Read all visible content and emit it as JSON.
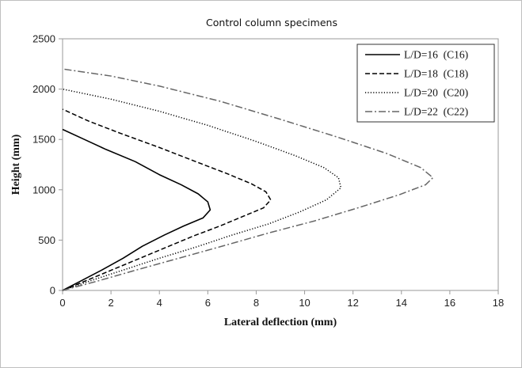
{
  "chart_data": {
    "type": "line",
    "title": "Control column specimens",
    "xlabel": "Lateral deflection (mm)",
    "ylabel": "Height (mm)",
    "xlim": [
      0,
      18
    ],
    "ylim": [
      0,
      2500
    ],
    "xticks": [
      "0",
      "2",
      "4",
      "6",
      "8",
      "10",
      "12",
      "14",
      "16",
      "18"
    ],
    "yticks": [
      "0",
      "500",
      "1000",
      "1500",
      "2000",
      "2500"
    ],
    "grid": false,
    "legend_position": "top-right",
    "series": [
      {
        "name": "L/D=16  (C16)",
        "color": "#000000",
        "dash": "solid",
        "points": [
          [
            0,
            0
          ],
          [
            0.8,
            100
          ],
          [
            1.6,
            200
          ],
          [
            2.5,
            320
          ],
          [
            3.3,
            440
          ],
          [
            4.2,
            550
          ],
          [
            5.0,
            640
          ],
          [
            5.8,
            720
          ],
          [
            6.1,
            800
          ],
          [
            6.0,
            880
          ],
          [
            5.6,
            960
          ],
          [
            4.9,
            1050
          ],
          [
            4.0,
            1150
          ],
          [
            3.0,
            1280
          ],
          [
            1.8,
            1400
          ],
          [
            0.9,
            1500
          ],
          [
            0,
            1600
          ]
        ]
      },
      {
        "name": "L/D=18  (C18)",
        "color": "#000000",
        "dash": "dashed",
        "points": [
          [
            0,
            0
          ],
          [
            1.0,
            100
          ],
          [
            2.1,
            210
          ],
          [
            3.2,
            320
          ],
          [
            4.3,
            430
          ],
          [
            5.4,
            540
          ],
          [
            6.5,
            640
          ],
          [
            7.5,
            740
          ],
          [
            8.3,
            820
          ],
          [
            8.6,
            900
          ],
          [
            8.4,
            980
          ],
          [
            7.8,
            1060
          ],
          [
            6.8,
            1160
          ],
          [
            5.5,
            1280
          ],
          [
            4.0,
            1420
          ],
          [
            2.4,
            1560
          ],
          [
            1.1,
            1680
          ],
          [
            0,
            1800
          ]
        ]
      },
      {
        "name": "L/D=20  (C20)",
        "color": "#000000",
        "dash": "dotted",
        "points": [
          [
            0,
            0
          ],
          [
            1.2,
            100
          ],
          [
            2.6,
            210
          ],
          [
            4.0,
            320
          ],
          [
            5.5,
            430
          ],
          [
            7.0,
            550
          ],
          [
            8.5,
            660
          ],
          [
            9.8,
            780
          ],
          [
            10.9,
            900
          ],
          [
            11.5,
            1020
          ],
          [
            11.4,
            1120
          ],
          [
            10.8,
            1220
          ],
          [
            9.6,
            1340
          ],
          [
            8.0,
            1480
          ],
          [
            6.0,
            1640
          ],
          [
            4.0,
            1780
          ],
          [
            2.0,
            1900
          ],
          [
            0,
            2000
          ]
        ]
      },
      {
        "name": "L/D=22  (C22)",
        "color": "#666666",
        "dash": "dashdot",
        "points": [
          [
            0,
            0
          ],
          [
            1.4,
            90
          ],
          [
            3.0,
            200
          ],
          [
            4.8,
            320
          ],
          [
            6.6,
            440
          ],
          [
            8.5,
            570
          ],
          [
            10.4,
            690
          ],
          [
            12.2,
            820
          ],
          [
            13.9,
            950
          ],
          [
            15.0,
            1050
          ],
          [
            15.3,
            1120
          ],
          [
            14.8,
            1220
          ],
          [
            13.4,
            1360
          ],
          [
            11.4,
            1520
          ],
          [
            9.0,
            1700
          ],
          [
            6.5,
            1880
          ],
          [
            4.0,
            2030
          ],
          [
            2.0,
            2130
          ],
          [
            0,
            2200
          ]
        ]
      }
    ]
  }
}
